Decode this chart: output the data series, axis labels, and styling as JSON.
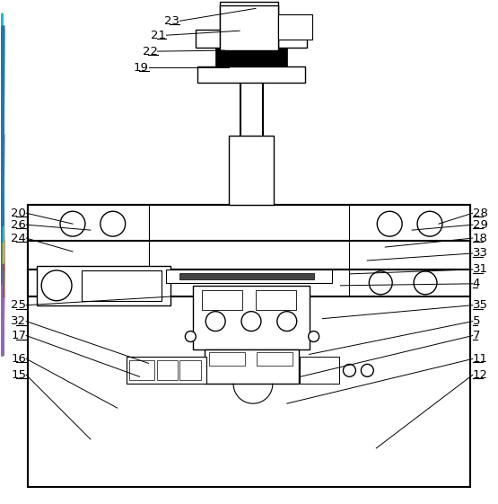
{
  "background_color": "#ffffff",
  "fig_width": 5.55,
  "fig_height": 5.61,
  "dpi": 100
}
